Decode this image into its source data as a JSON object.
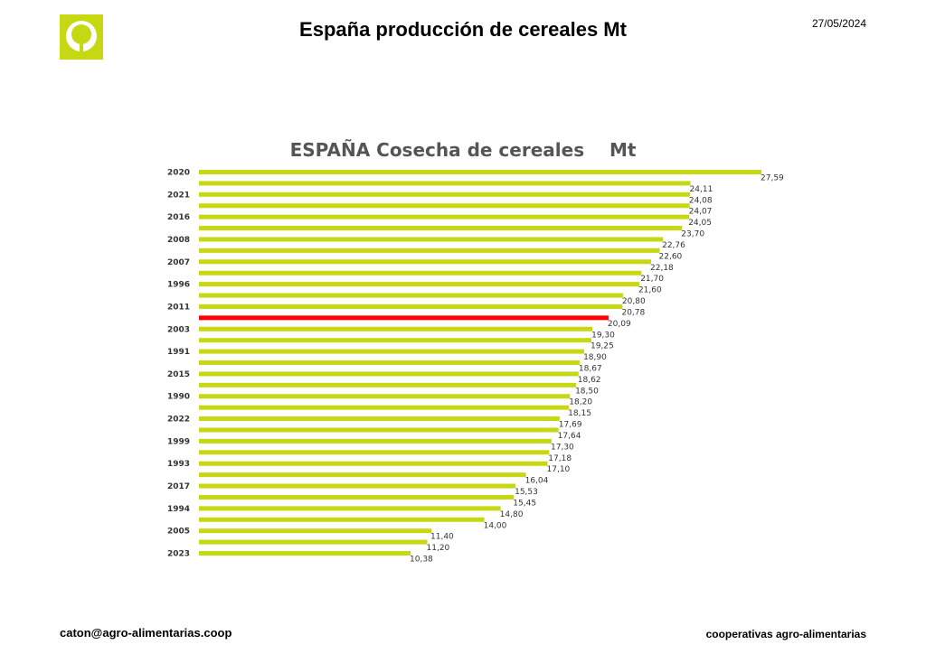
{
  "header": {
    "title": "España producción de cereales Mt",
    "date": "27/05/2024",
    "logo_icon": "cooperativas-logo-icon"
  },
  "footer": {
    "email": "caton@agro-alimentarias.coop",
    "brand": "cooperativas agro-alimentarias"
  },
  "colors": {
    "bar": "#c5d812",
    "highlight": "#ff0000",
    "logo": "#c5d812"
  },
  "chart_data": {
    "type": "bar",
    "orientation": "horizontal",
    "title": "ESPAÑA Cosecha de cereales    Mt",
    "categories": [
      "2020",
      "",
      "2021",
      "",
      "2016",
      "",
      "2008",
      "",
      "2007",
      "",
      "1996",
      "",
      "2011",
      "",
      "2003",
      "",
      "1991",
      "",
      "2015",
      "",
      "1990",
      "",
      "2022",
      "",
      "1999",
      "",
      "1993",
      "",
      "2017",
      "",
      "1994",
      "",
      "2005",
      "",
      "2023"
    ],
    "values": [
      27.59,
      24.11,
      24.08,
      24.07,
      24.05,
      23.7,
      22.76,
      22.6,
      22.18,
      21.7,
      21.6,
      20.8,
      20.78,
      20.09,
      19.3,
      19.25,
      18.9,
      18.67,
      18.62,
      18.5,
      18.2,
      18.15,
      17.69,
      17.64,
      17.3,
      17.18,
      17.1,
      16.04,
      15.53,
      15.45,
      14.8,
      14.0,
      11.4,
      11.2,
      10.38
    ],
    "value_labels": [
      "27,59",
      "24,11",
      "24,08",
      "24,07",
      "24,05",
      "23,70",
      "22,76",
      "22,60",
      "22,18",
      "21,70",
      "21,60",
      "20,80",
      "20,78",
      "20,09",
      "19,30",
      "19,25",
      "18,90",
      "18,67",
      "18,62",
      "18,50",
      "18,20",
      "18,15",
      "17,69",
      "17,64",
      "17,30",
      "17,18",
      "17,10",
      "16,04",
      "15,53",
      "15,45",
      "14,80",
      "14,00",
      "11,40",
      "11,20",
      "10,38"
    ],
    "highlight_index": 13,
    "xlim": [
      0,
      27.59
    ],
    "grid": false,
    "legend": "none"
  }
}
